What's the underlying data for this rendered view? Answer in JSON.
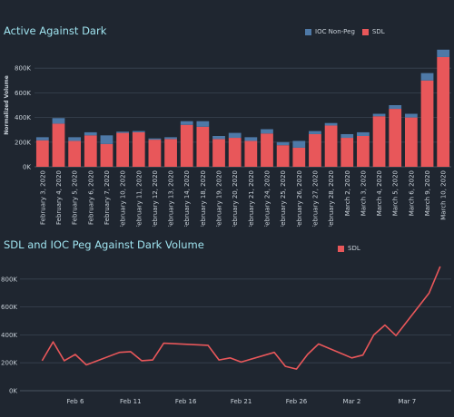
{
  "chart_data": [
    {
      "type": "bar",
      "stacked": true,
      "title": "Active Against Dark",
      "ylabel": "Normalized Volume",
      "xlabel": "",
      "ylim": [
        0,
        1000000
      ],
      "yticks": [
        0,
        200000,
        400000,
        600000,
        800000
      ],
      "ytick_labels": [
        "0K",
        "200K",
        "400K",
        "600K",
        "800K"
      ],
      "grid": true,
      "legend_position": "top-right",
      "categories": [
        "February 3, 2020",
        "February 4, 2020",
        "February 5, 2020",
        "February 6, 2020",
        "February 7, 2020",
        "February 10, 2020",
        "February 11, 2020",
        "February 12, 2020",
        "February 13, 2020",
        "February 14, 2020",
        "February 18, 2020",
        "February 19, 2020",
        "February 20, 2020",
        "February 21, 2020",
        "February 24, 2020",
        "February 25, 2020",
        "February 26, 2020",
        "February 27, 2020",
        "February 28, 2020",
        "March 2, 2020",
        "March 3, 2020",
        "March 4, 2020",
        "March 5, 2020",
        "March 6, 2020",
        "March 9, 2020",
        "March 10, 2020"
      ],
      "series": [
        {
          "name": "SDL",
          "color": "#e8575a",
          "values": [
            215000,
            350000,
            210000,
            255000,
            185000,
            275000,
            280000,
            220000,
            225000,
            340000,
            325000,
            225000,
            235000,
            210000,
            270000,
            175000,
            155000,
            265000,
            335000,
            235000,
            250000,
            410000,
            470000,
            400000,
            700000,
            890000
          ]
        },
        {
          "name": "IOC Non-Peg",
          "color": "#4e79a7",
          "values": [
            25000,
            45000,
            30000,
            25000,
            70000,
            10000,
            10000,
            10000,
            15000,
            30000,
            45000,
            25000,
            40000,
            30000,
            35000,
            25000,
            55000,
            25000,
            20000,
            30000,
            30000,
            20000,
            30000,
            30000,
            60000,
            60000
          ]
        }
      ]
    },
    {
      "type": "line",
      "title": "SDL and IOC Peg Against Dark Volume",
      "xlabel": "",
      "ylabel": "",
      "ylim": [
        0,
        1000000
      ],
      "yticks": [
        0,
        200000,
        400000,
        600000,
        800000
      ],
      "ytick_labels": [
        "0K",
        "200K",
        "400K",
        "600K",
        "800K"
      ],
      "x_range": [
        1,
        40
      ],
      "x_ticks": [
        6,
        11,
        16,
        21,
        26,
        31,
        36
      ],
      "x_tick_labels": [
        "Feb 6",
        "Feb 11",
        "Feb 16",
        "Feb 21",
        "Feb 26",
        "Mar 2",
        "Mar 7"
      ],
      "grid": true,
      "legend_position": "top-right",
      "series": [
        {
          "name": "SDL",
          "color": "#e8575a",
          "x": [
            3,
            4,
            5,
            6,
            7,
            10,
            11,
            12,
            13,
            14,
            18,
            19,
            20,
            21,
            24,
            25,
            26,
            27,
            28,
            31,
            32,
            33,
            34,
            35,
            38,
            39
          ],
          "values": [
            215000,
            350000,
            215000,
            260000,
            185000,
            275000,
            280000,
            215000,
            220000,
            340000,
            325000,
            220000,
            235000,
            205000,
            275000,
            175000,
            155000,
            260000,
            335000,
            235000,
            255000,
            400000,
            470000,
            395000,
            700000,
            890000
          ]
        }
      ]
    }
  ]
}
